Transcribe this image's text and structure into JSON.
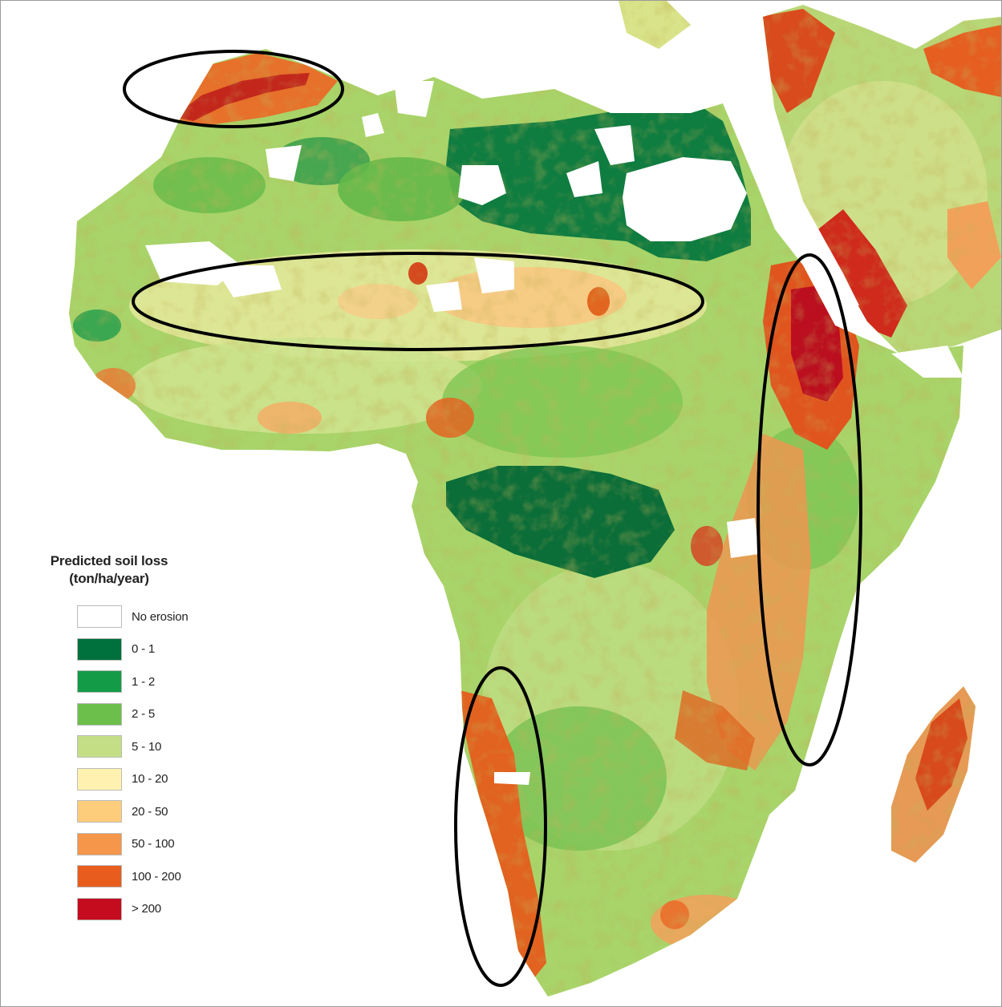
{
  "legend": {
    "title_line1": "Predicted soil loss",
    "title_line2": "(ton/ha/year)",
    "items": [
      {
        "label": "No erosion",
        "color": "#ffffff"
      },
      {
        "label": "0 - 1",
        "color": "#00703c"
      },
      {
        "label": "1 - 2",
        "color": "#139b48"
      },
      {
        "label": "2 - 5",
        "color": "#6dbf4b"
      },
      {
        "label": "5 - 10",
        "color": "#c4de86"
      },
      {
        "label": "10 - 20",
        "color": "#fff2b0"
      },
      {
        "label": "20 - 50",
        "color": "#fdcd7c"
      },
      {
        "label": "50 - 100",
        "color": "#f5964b"
      },
      {
        "label": "100 - 200",
        "color": "#e85d1e"
      },
      {
        "label": "> 200",
        "color": "#c40c1e"
      }
    ]
  },
  "highlight_regions": [
    {
      "id": "atlas-mountains"
    },
    {
      "id": "sahel-belt"
    },
    {
      "id": "east-african-highlands"
    },
    {
      "id": "southwest-african-coast"
    }
  ]
}
